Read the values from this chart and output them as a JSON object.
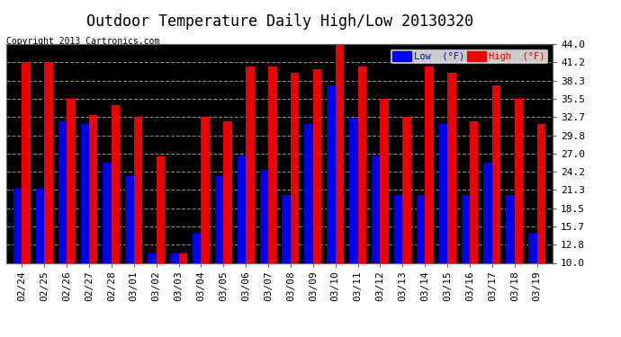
{
  "title": "Outdoor Temperature Daily High/Low 20130320",
  "copyright": "Copyright 2013 Cartronics.com",
  "ylabel_right_ticks": [
    10.0,
    12.8,
    15.7,
    18.5,
    21.3,
    24.2,
    27.0,
    29.8,
    32.7,
    35.5,
    38.3,
    41.2,
    44.0
  ],
  "categories": [
    "02/24",
    "02/25",
    "02/26",
    "02/27",
    "02/28",
    "03/01",
    "03/02",
    "03/03",
    "03/04",
    "03/05",
    "03/06",
    "03/07",
    "03/08",
    "03/09",
    "03/10",
    "03/11",
    "03/12",
    "03/13",
    "03/14",
    "03/15",
    "03/16",
    "03/17",
    "03/18",
    "03/19"
  ],
  "low_values": [
    21.5,
    21.5,
    32.0,
    31.5,
    25.5,
    23.5,
    11.5,
    11.5,
    14.5,
    23.5,
    26.5,
    24.5,
    20.5,
    31.5,
    37.5,
    32.5,
    26.5,
    20.5,
    20.5,
    31.5,
    20.5,
    25.5,
    20.5,
    14.5
  ],
  "high_values": [
    41.2,
    41.2,
    35.5,
    33.0,
    34.5,
    32.7,
    26.5,
    11.5,
    32.7,
    32.0,
    40.5,
    40.5,
    39.5,
    40.0,
    44.0,
    40.5,
    35.5,
    32.7,
    40.5,
    39.5,
    32.0,
    37.5,
    35.5,
    31.5
  ],
  "low_color": "#0000ee",
  "high_color": "#ee0000",
  "bg_color": "#ffffff",
  "plot_bg_color": "#000000",
  "grid_color": "#888888",
  "ylim": [
    10.0,
    44.0
  ],
  "bar_width": 0.38,
  "title_fontsize": 12,
  "tick_fontsize": 8,
  "legend_low_label": "Low  (°F)",
  "legend_high_label": "High  (°F)"
}
